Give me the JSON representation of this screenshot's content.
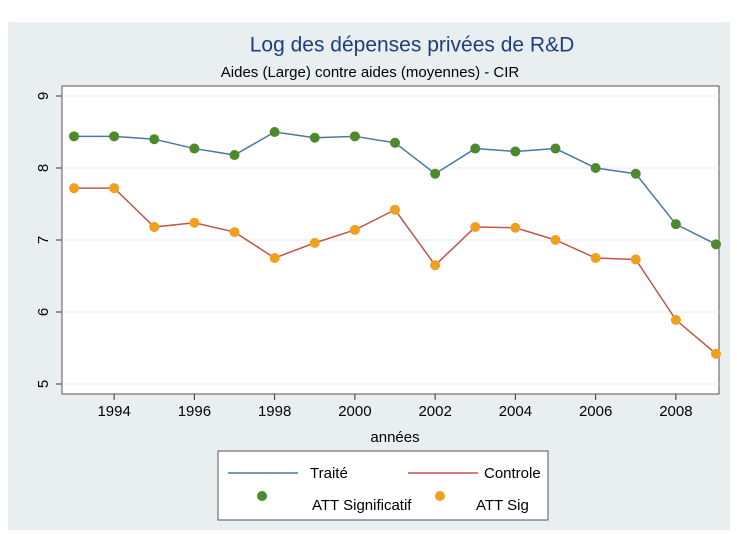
{
  "chart_data": {
    "type": "line",
    "title": "Log des dépenses privées de R&D",
    "subtitle": "Aides  (Large)  contre aides  (moyennes) - CIR",
    "x_label": "années",
    "x": [
      1993,
      1994,
      1995,
      1996,
      1997,
      1998,
      1999,
      2000,
      2001,
      2002,
      2003,
      2004,
      2005,
      2006,
      2007,
      2008,
      2009
    ],
    "series": [
      {
        "name": "Traité",
        "color": "#4a78a6",
        "values": [
          8.44,
          8.44,
          8.4,
          8.27,
          8.18,
          8.5,
          8.42,
          8.44,
          8.35,
          7.92,
          8.27,
          8.23,
          8.27,
          8.0,
          7.92,
          7.22,
          6.94
        ],
        "marker": {
          "name": "ATT Significatif",
          "color": "#4e8a2b"
        }
      },
      {
        "name": "Controle",
        "color": "#c0574a",
        "values": [
          7.72,
          7.72,
          7.18,
          7.24,
          7.11,
          6.75,
          6.96,
          7.14,
          7.42,
          6.65,
          7.18,
          7.17,
          7.0,
          6.75,
          6.73,
          5.89,
          5.42
        ],
        "marker": {
          "name": "ATT Sig",
          "color": "#f0a01e"
        }
      }
    ],
    "xlim": [
      1993,
      2009
    ],
    "xticks": [
      1994,
      1996,
      1998,
      2000,
      2002,
      2004,
      2006,
      2008
    ],
    "ylim": [
      5,
      9
    ],
    "yticks": [
      5,
      6,
      7,
      8,
      9
    ],
    "grid": true,
    "legend": "bottom"
  }
}
